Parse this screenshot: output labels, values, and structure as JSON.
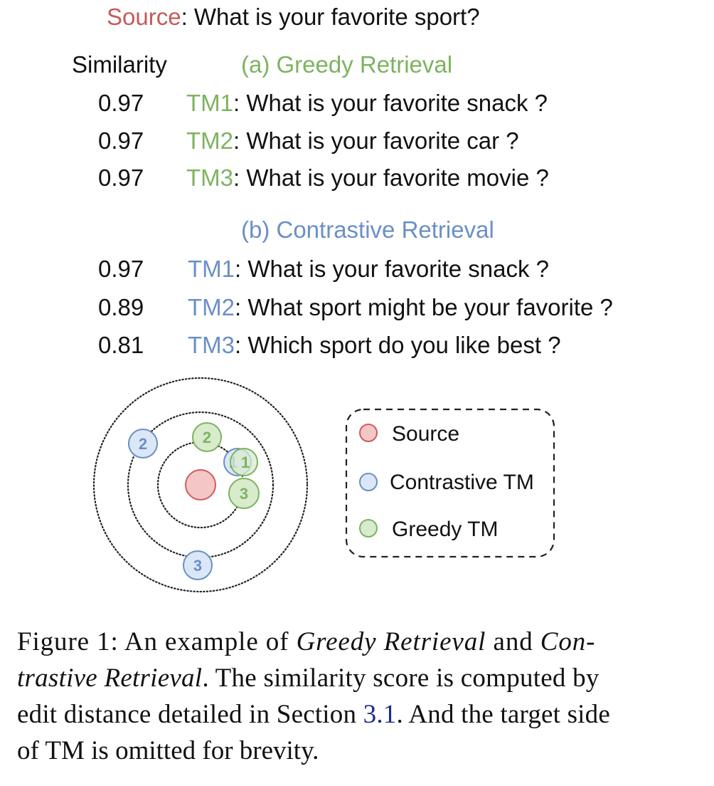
{
  "source": {
    "label": "Source",
    "text": ": What is your favorite sport?"
  },
  "similarity_header": "Similarity",
  "greedy": {
    "title": "(a) Greedy Retrieval",
    "rows": [
      {
        "score": "0.97",
        "tm": "TM1",
        "text": ": What is your favorite snack ?"
      },
      {
        "score": "0.97",
        "tm": "TM2",
        "text": ": What is your favorite car ?"
      },
      {
        "score": "0.97",
        "tm": "TM3",
        "text": ": What is your favorite movie ?"
      }
    ]
  },
  "contrastive": {
    "title": "(b) Contrastive Retrieval",
    "rows": [
      {
        "score": "0.97",
        "tm": "TM1",
        "text": ": What is your favorite snack ?"
      },
      {
        "score": "0.89",
        "tm": "TM2",
        "text": ": What sport might be your favorite ?"
      },
      {
        "score": "0.81",
        "tm": "TM3",
        "text": ": Which sport do you like best ?"
      }
    ]
  },
  "diagram": {
    "markers": {
      "contrastive": [
        "2",
        "1",
        "3"
      ],
      "greedy": [
        "2",
        "1",
        "3"
      ]
    },
    "legend": {
      "source": "Source",
      "contrastive": "Contrastive TM",
      "greedy": "Greedy TM"
    },
    "colors": {
      "source_fill": "#f4c7c7",
      "source_stroke": "#d25b5b",
      "contrastive_fill": "#dbe7f6",
      "contrastive_stroke": "#6a8fc8",
      "greedy_fill": "#d8ebcd",
      "greedy_stroke": "#7db35f"
    }
  },
  "caption": {
    "line1_a": "Figure 1:  An example of ",
    "line1_em": "Greedy Retrieval",
    "line1_b": " and ",
    "line1_em2": "Con-",
    "line2_em": "trastive Retrieval",
    "line2_b": ". The similarity score is computed by",
    "line3_a": "edit distance detailed in Section ",
    "line3_ref": "3.1",
    "line3_b": ". And the target side",
    "line4": "of TM is omitted for brevity."
  }
}
